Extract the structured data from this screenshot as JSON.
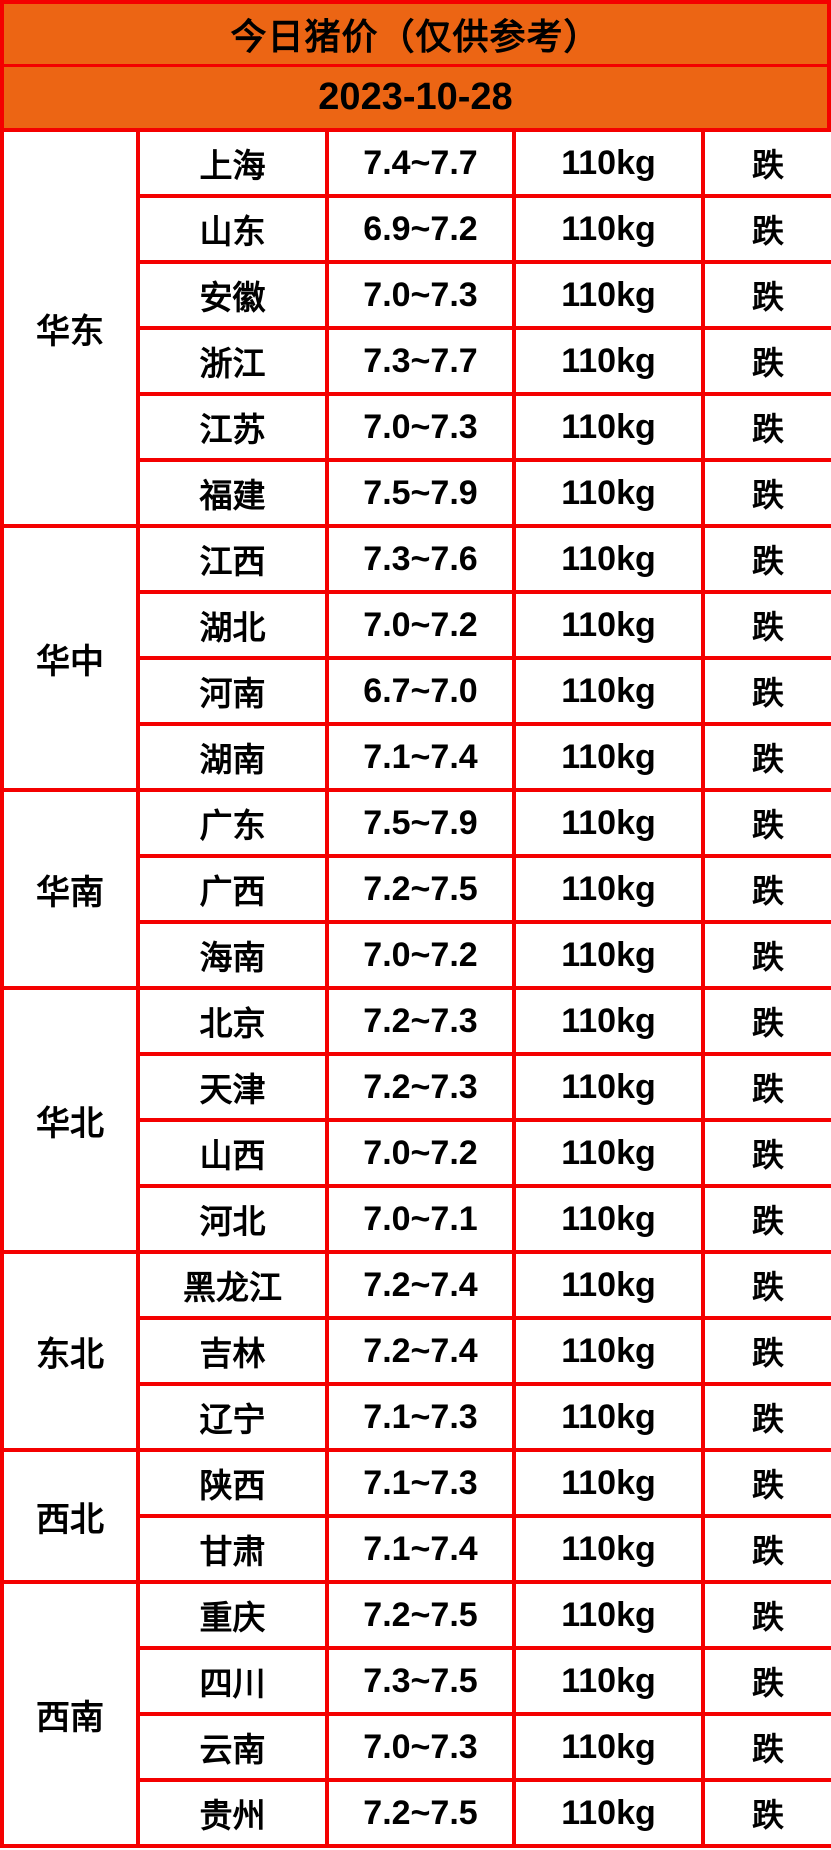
{
  "header": {
    "title": "今日猪价（仅供参考）",
    "date": "2023-10-28"
  },
  "colors": {
    "header_orange": "#EC6514",
    "border_red": "#F40000",
    "status_fall_green": "#2FD32F",
    "text_black": "#000000",
    "cell_bg": "#FFFFFF"
  },
  "table": {
    "regions": [
      {
        "name": "华东",
        "rows": [
          {
            "province": "上海",
            "price": "7.4~7.7",
            "weight": "110kg",
            "status": "跌"
          },
          {
            "province": "山东",
            "price": "6.9~7.2",
            "weight": "110kg",
            "status": "跌"
          },
          {
            "province": "安徽",
            "price": "7.0~7.3",
            "weight": "110kg",
            "status": "跌"
          },
          {
            "province": "浙江",
            "price": "7.3~7.7",
            "weight": "110kg",
            "status": "跌"
          },
          {
            "province": "江苏",
            "price": "7.0~7.3",
            "weight": "110kg",
            "status": "跌"
          },
          {
            "province": "福建",
            "price": "7.5~7.9",
            "weight": "110kg",
            "status": "跌"
          }
        ]
      },
      {
        "name": "华中",
        "rows": [
          {
            "province": "江西",
            "price": "7.3~7.6",
            "weight": "110kg",
            "status": "跌"
          },
          {
            "province": "湖北",
            "price": "7.0~7.2",
            "weight": "110kg",
            "status": "跌"
          },
          {
            "province": "河南",
            "price": "6.7~7.0",
            "weight": "110kg",
            "status": "跌"
          },
          {
            "province": "湖南",
            "price": "7.1~7.4",
            "weight": "110kg",
            "status": "跌"
          }
        ]
      },
      {
        "name": "华南",
        "rows": [
          {
            "province": "广东",
            "price": "7.5~7.9",
            "weight": "110kg",
            "status": "跌"
          },
          {
            "province": "广西",
            "price": "7.2~7.5",
            "weight": "110kg",
            "status": "跌"
          },
          {
            "province": "海南",
            "price": "7.0~7.2",
            "weight": "110kg",
            "status": "跌"
          }
        ]
      },
      {
        "name": "华北",
        "rows": [
          {
            "province": "北京",
            "price": "7.2~7.3",
            "weight": "110kg",
            "status": "跌"
          },
          {
            "province": "天津",
            "price": "7.2~7.3",
            "weight": "110kg",
            "status": "跌"
          },
          {
            "province": "山西",
            "price": "7.0~7.2",
            "weight": "110kg",
            "status": "跌"
          },
          {
            "province": "河北",
            "price": "7.0~7.1",
            "weight": "110kg",
            "status": "跌"
          }
        ]
      },
      {
        "name": "东北",
        "rows": [
          {
            "province": "黑龙江",
            "price": "7.2~7.4",
            "weight": "110kg",
            "status": "跌"
          },
          {
            "province": "吉林",
            "price": "7.2~7.4",
            "weight": "110kg",
            "status": "跌"
          },
          {
            "province": "辽宁",
            "price": "7.1~7.3",
            "weight": "110kg",
            "status": "跌"
          }
        ]
      },
      {
        "name": "西北",
        "rows": [
          {
            "province": "陕西",
            "price": "7.1~7.3",
            "weight": "110kg",
            "status": "跌"
          },
          {
            "province": "甘肃",
            "price": "7.1~7.4",
            "weight": "110kg",
            "status": "跌"
          }
        ]
      },
      {
        "name": "西南",
        "rows": [
          {
            "province": "重庆",
            "price": "7.2~7.5",
            "weight": "110kg",
            "status": "跌"
          },
          {
            "province": "四川",
            "price": "7.3~7.5",
            "weight": "110kg",
            "status": "跌"
          },
          {
            "province": "云南",
            "price": "7.0~7.3",
            "weight": "110kg",
            "status": "跌"
          },
          {
            "province": "贵州",
            "price": "7.2~7.5",
            "weight": "110kg",
            "status": "跌"
          }
        ]
      }
    ]
  },
  "chart_data": {
    "type": "table",
    "title": "今日猪价（仅供参考）",
    "date": "2023-10-28",
    "rows": [
      [
        "华东",
        "上海",
        "7.4~7.7",
        "110kg",
        "跌"
      ],
      [
        "华东",
        "山东",
        "6.9~7.2",
        "110kg",
        "跌"
      ],
      [
        "华东",
        "安徽",
        "7.0~7.3",
        "110kg",
        "跌"
      ],
      [
        "华东",
        "浙江",
        "7.3~7.7",
        "110kg",
        "跌"
      ],
      [
        "华东",
        "江苏",
        "7.0~7.3",
        "110kg",
        "跌"
      ],
      [
        "华东",
        "福建",
        "7.5~7.9",
        "110kg",
        "跌"
      ],
      [
        "华中",
        "江西",
        "7.3~7.6",
        "110kg",
        "跌"
      ],
      [
        "华中",
        "湖北",
        "7.0~7.2",
        "110kg",
        "跌"
      ],
      [
        "华中",
        "河南",
        "6.7~7.0",
        "110kg",
        "跌"
      ],
      [
        "华中",
        "湖南",
        "7.1~7.4",
        "110kg",
        "跌"
      ],
      [
        "华南",
        "广东",
        "7.5~7.9",
        "110kg",
        "跌"
      ],
      [
        "华南",
        "广西",
        "7.2~7.5",
        "110kg",
        "跌"
      ],
      [
        "华南",
        "海南",
        "7.0~7.2",
        "110kg",
        "跌"
      ],
      [
        "华北",
        "北京",
        "7.2~7.3",
        "110kg",
        "跌"
      ],
      [
        "华北",
        "天津",
        "7.2~7.3",
        "110kg",
        "跌"
      ],
      [
        "华北",
        "山西",
        "7.0~7.2",
        "110kg",
        "跌"
      ],
      [
        "华北",
        "河北",
        "7.0~7.1",
        "110kg",
        "跌"
      ],
      [
        "东北",
        "黑龙江",
        "7.2~7.4",
        "110kg",
        "跌"
      ],
      [
        "东北",
        "吉林",
        "7.2~7.4",
        "110kg",
        "跌"
      ],
      [
        "东北",
        "辽宁",
        "7.1~7.3",
        "110kg",
        "跌"
      ],
      [
        "西北",
        "陕西",
        "7.1~7.3",
        "110kg",
        "跌"
      ],
      [
        "西北",
        "甘肃",
        "7.1~7.4",
        "110kg",
        "跌"
      ],
      [
        "西南",
        "重庆",
        "7.2~7.5",
        "110kg",
        "跌"
      ],
      [
        "西南",
        "四川",
        "7.3~7.5",
        "110kg",
        "跌"
      ],
      [
        "西南",
        "云南",
        "7.0~7.3",
        "110kg",
        "跌"
      ],
      [
        "西南",
        "贵州",
        "7.2~7.5",
        "110kg",
        "跌"
      ]
    ]
  }
}
